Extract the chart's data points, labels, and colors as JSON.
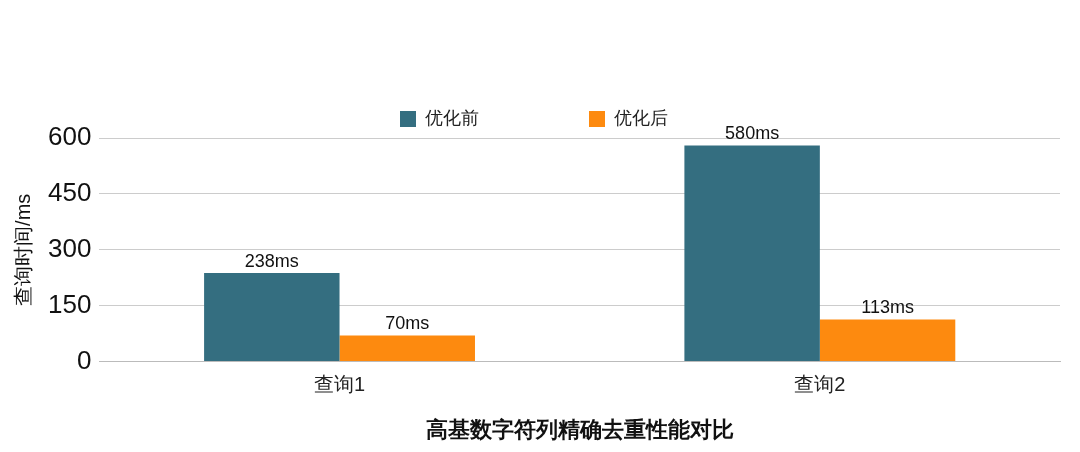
{
  "chart_data": {
    "type": "bar",
    "xlabel": "高基数字符列精确去重性能对比",
    "ylabel": "查询时间/ms",
    "categories": [
      "查询1",
      "查询2"
    ],
    "series": [
      {
        "name": "优化前",
        "color": "#346e80",
        "values": [
          238,
          580
        ],
        "value_labels": [
          "238ms",
          "580ms"
        ]
      },
      {
        "name": "优化后",
        "color": "#fd8a0f",
        "values": [
          70,
          113
        ],
        "value_labels": [
          "70ms",
          "113ms"
        ]
      }
    ],
    "ylim": [
      0,
      600
    ],
    "yticks": [
      0,
      150,
      300,
      450,
      600
    ],
    "grid": "y",
    "legend": "top"
  }
}
